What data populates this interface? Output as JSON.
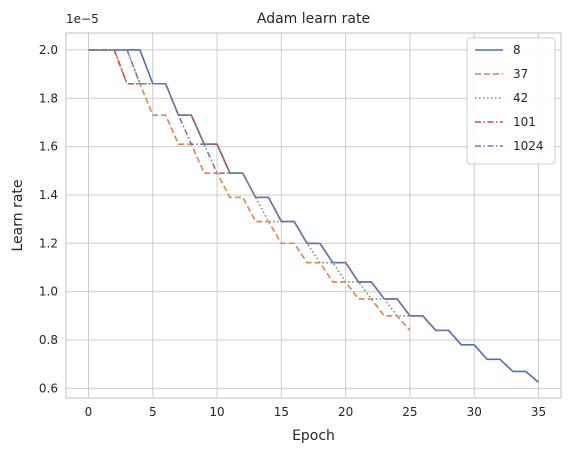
{
  "chart_data": {
    "type": "line",
    "title": "Adam learn rate",
    "xlabel": "Epoch",
    "ylabel": "Learn rate",
    "y_scale_label": "1e−5",
    "xlim": [
      -1.75,
      36.75
    ],
    "ylim": [
      0.56,
      2.07
    ],
    "x_ticks": [
      0,
      5,
      10,
      15,
      20,
      25,
      30,
      35
    ],
    "y_ticks": [
      0.6,
      0.8,
      1.0,
      1.2,
      1.4,
      1.6,
      1.8,
      2.0
    ],
    "y_tick_labels": [
      "0.6",
      "0.8",
      "1.0",
      "1.2",
      "1.4",
      "1.6",
      "1.8",
      "2.0"
    ],
    "grid": true,
    "legend_position": "top-right",
    "series": [
      {
        "name": "8",
        "color": "#4c72b0",
        "dash": "solid",
        "x": [
          0,
          1,
          2,
          3,
          4,
          5,
          6,
          7,
          8,
          9,
          10,
          11,
          12,
          13,
          14,
          15,
          16,
          17,
          18,
          19,
          20,
          21,
          22,
          23,
          24,
          25,
          26,
          27,
          28,
          29,
          30,
          31,
          32,
          33,
          34,
          35
        ],
        "y": [
          2.0,
          2.0,
          2.0,
          2.0,
          2.0,
          1.86,
          1.86,
          1.73,
          1.73,
          1.61,
          1.61,
          1.49,
          1.49,
          1.39,
          1.39,
          1.29,
          1.29,
          1.2,
          1.2,
          1.12,
          1.12,
          1.04,
          1.04,
          0.97,
          0.97,
          0.9,
          0.9,
          0.84,
          0.84,
          0.78,
          0.78,
          0.72,
          0.72,
          0.67,
          0.67,
          0.625
        ]
      },
      {
        "name": "37",
        "color": "#dd8452",
        "dash": "dashed",
        "x": [
          0,
          1,
          2,
          3,
          4,
          5,
          6,
          7,
          8,
          9,
          10,
          11,
          12,
          13,
          14,
          15,
          16,
          17,
          18,
          19,
          20,
          21,
          22,
          23,
          24,
          25
        ],
        "y": [
          2.0,
          2.0,
          2.0,
          1.86,
          1.86,
          1.73,
          1.73,
          1.61,
          1.61,
          1.49,
          1.49,
          1.39,
          1.39,
          1.29,
          1.29,
          1.2,
          1.2,
          1.12,
          1.12,
          1.04,
          1.04,
          0.97,
          0.97,
          0.9,
          0.9,
          0.84
        ]
      },
      {
        "name": "42",
        "color": "#55a868",
        "dash": "dotted",
        "x": [
          0,
          1,
          2,
          3,
          4,
          5,
          6,
          7,
          8,
          9,
          10,
          11,
          12,
          13,
          14,
          15,
          16,
          17,
          18,
          19,
          20,
          21,
          22,
          23,
          24,
          25,
          26,
          27,
          28
        ],
        "y": [
          2.0,
          2.0,
          2.0,
          2.0,
          1.86,
          1.86,
          1.86,
          1.73,
          1.73,
          1.61,
          1.61,
          1.49,
          1.49,
          1.39,
          1.29,
          1.29,
          1.29,
          1.2,
          1.12,
          1.12,
          1.04,
          1.04,
          0.97,
          0.97,
          0.9,
          0.9,
          0.9,
          0.84,
          0.84
        ]
      },
      {
        "name": "101",
        "color": "#c44e52",
        "dash": "dashdot",
        "x": [
          0,
          1,
          2,
          3,
          4,
          5,
          6,
          7,
          8,
          9,
          10,
          11,
          12,
          13,
          14,
          15,
          16,
          17,
          18,
          19,
          20,
          21,
          22,
          23,
          24,
          25,
          26,
          27,
          28
        ],
        "y": [
          2.0,
          2.0,
          2.0,
          1.86,
          1.86,
          1.86,
          1.86,
          1.73,
          1.73,
          1.61,
          1.61,
          1.49,
          1.49,
          1.39,
          1.39,
          1.29,
          1.29,
          1.2,
          1.2,
          1.12,
          1.12,
          1.04,
          1.04,
          0.97,
          0.97,
          0.9,
          0.9,
          0.84,
          0.84
        ]
      },
      {
        "name": "1024",
        "color": "#8172b3",
        "dash": "dashdot",
        "x": [
          0,
          1,
          2,
          3,
          4,
          5,
          6,
          7,
          8,
          9,
          10,
          11,
          12,
          13,
          14,
          15,
          16,
          17,
          18,
          19,
          20,
          21,
          22,
          23,
          24,
          25,
          26,
          27,
          28
        ],
        "y": [
          2.0,
          2.0,
          2.0,
          2.0,
          1.86,
          1.86,
          1.86,
          1.73,
          1.61,
          1.61,
          1.49,
          1.49,
          1.49,
          1.39,
          1.39,
          1.29,
          1.29,
          1.2,
          1.2,
          1.12,
          1.12,
          1.04,
          1.04,
          0.97,
          0.97,
          0.9,
          0.9,
          0.84,
          0.84
        ]
      }
    ]
  }
}
